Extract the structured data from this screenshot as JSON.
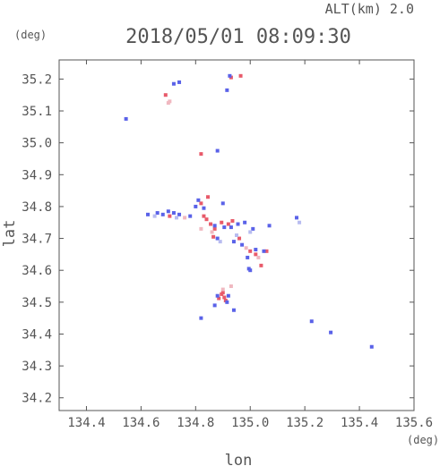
{
  "chart_data": {
    "type": "scatter",
    "title": "2018/05/01 08:09:30",
    "subtitle": "ALT(km) 2.0",
    "xlabel": "lon",
    "ylabel": "lat",
    "x_unit": "(deg)",
    "y_unit": "(deg)",
    "xlim": [
      134.3,
      135.6
    ],
    "ylim": [
      34.16,
      35.26
    ],
    "xticks": [
      "134.4",
      "134.6",
      "134.8",
      "135.0",
      "135.2",
      "135.4",
      "135.6"
    ],
    "yticks": [
      "34.2",
      "34.3",
      "34.4",
      "34.5",
      "34.6",
      "34.7",
      "34.8",
      "34.9",
      "35.0",
      "35.1",
      "35.2"
    ],
    "grid": false,
    "colors": {
      "positive": "#e85a6a",
      "negative": "#5a62e8",
      "pale_positive": "#f0b8c0",
      "pale_negative": "#b8bcf0"
    },
    "series": [
      {
        "values": [
          {
            "x": 134.905,
            "y": 34.515,
            "v": 1
          },
          {
            "x": 134.895,
            "y": 34.525,
            "v": 1
          },
          {
            "x": 134.885,
            "y": 34.512,
            "v": 1
          },
          {
            "x": 134.91,
            "y": 34.505,
            "v": 1
          },
          {
            "x": 134.9,
            "y": 34.53,
            "v": 1
          },
          {
            "x": 134.84,
            "y": 34.76,
            "v": 1
          },
          {
            "x": 134.855,
            "y": 34.745,
            "v": 1
          },
          {
            "x": 134.87,
            "y": 34.73,
            "v": 1
          },
          {
            "x": 134.83,
            "y": 34.77,
            "v": 1
          },
          {
            "x": 134.82,
            "y": 34.81,
            "v": 1
          },
          {
            "x": 134.845,
            "y": 34.83,
            "v": 1
          },
          {
            "x": 134.895,
            "y": 34.75,
            "v": 1
          },
          {
            "x": 134.92,
            "y": 34.745,
            "v": 1
          },
          {
            "x": 134.935,
            "y": 34.755,
            "v": 1
          },
          {
            "x": 135.0,
            "y": 34.66,
            "v": 1
          },
          {
            "x": 135.02,
            "y": 34.65,
            "v": 1
          },
          {
            "x": 135.04,
            "y": 34.615,
            "v": 1
          },
          {
            "x": 134.865,
            "y": 34.705,
            "v": 1
          },
          {
            "x": 134.93,
            "y": 35.205,
            "v": 1
          },
          {
            "x": 134.965,
            "y": 35.21,
            "v": 1
          },
          {
            "x": 134.69,
            "y": 35.15,
            "v": 1
          },
          {
            "x": 134.82,
            "y": 34.965,
            "v": 1
          },
          {
            "x": 134.705,
            "y": 34.77,
            "v": 1
          },
          {
            "x": 135.06,
            "y": 34.66,
            "v": 1
          },
          {
            "x": 134.96,
            "y": 34.7,
            "v": 1
          },
          {
            "x": 134.88,
            "y": 34.52,
            "v": -1
          },
          {
            "x": 134.915,
            "y": 34.5,
            "v": -1
          },
          {
            "x": 134.92,
            "y": 34.52,
            "v": -1
          },
          {
            "x": 134.66,
            "y": 34.78,
            "v": -1
          },
          {
            "x": 134.68,
            "y": 34.775,
            "v": -1
          },
          {
            "x": 134.7,
            "y": 34.785,
            "v": -1
          },
          {
            "x": 134.72,
            "y": 34.78,
            "v": -1
          },
          {
            "x": 134.74,
            "y": 34.775,
            "v": -1
          },
          {
            "x": 134.625,
            "y": 34.775,
            "v": -1
          },
          {
            "x": 134.8,
            "y": 34.8,
            "v": -1
          },
          {
            "x": 134.81,
            "y": 34.82,
            "v": -1
          },
          {
            "x": 134.83,
            "y": 34.795,
            "v": -1
          },
          {
            "x": 134.9,
            "y": 34.81,
            "v": -1
          },
          {
            "x": 134.87,
            "y": 34.74,
            "v": -1
          },
          {
            "x": 134.905,
            "y": 34.735,
            "v": -1
          },
          {
            "x": 134.93,
            "y": 34.735,
            "v": -1
          },
          {
            "x": 134.955,
            "y": 34.745,
            "v": -1
          },
          {
            "x": 134.98,
            "y": 34.75,
            "v": -1
          },
          {
            "x": 134.94,
            "y": 34.69,
            "v": -1
          },
          {
            "x": 134.97,
            "y": 34.68,
            "v": -1
          },
          {
            "x": 135.02,
            "y": 34.665,
            "v": -1
          },
          {
            "x": 135.05,
            "y": 34.66,
            "v": -1
          },
          {
            "x": 135.01,
            "y": 34.73,
            "v": -1
          },
          {
            "x": 135.07,
            "y": 34.74,
            "v": -1
          },
          {
            "x": 134.545,
            "y": 35.075,
            "v": -1
          },
          {
            "x": 134.72,
            "y": 35.185,
            "v": -1
          },
          {
            "x": 134.74,
            "y": 35.19,
            "v": -1
          },
          {
            "x": 134.925,
            "y": 35.21,
            "v": -1
          },
          {
            "x": 134.915,
            "y": 35.165,
            "v": -1
          },
          {
            "x": 134.88,
            "y": 34.975,
            "v": -1
          },
          {
            "x": 135.295,
            "y": 34.405,
            "v": -1
          },
          {
            "x": 135.445,
            "y": 34.36,
            "v": -1
          },
          {
            "x": 135.225,
            "y": 34.44,
            "v": -1
          },
          {
            "x": 134.94,
            "y": 34.475,
            "v": -1
          },
          {
            "x": 134.87,
            "y": 34.49,
            "v": -1
          },
          {
            "x": 134.82,
            "y": 34.45,
            "v": -1
          },
          {
            "x": 135.0,
            "y": 34.6,
            "v": -1
          },
          {
            "x": 134.995,
            "y": 34.605,
            "v": -1
          },
          {
            "x": 134.99,
            "y": 34.64,
            "v": -1
          },
          {
            "x": 135.17,
            "y": 34.765,
            "v": -1
          },
          {
            "x": 134.88,
            "y": 34.7,
            "v": -1
          },
          {
            "x": 134.78,
            "y": 34.77,
            "v": -1
          },
          {
            "x": 134.82,
            "y": 34.73,
            "v": 0.4
          },
          {
            "x": 134.86,
            "y": 34.72,
            "v": 0.4
          },
          {
            "x": 134.9,
            "y": 34.54,
            "v": 0.4
          },
          {
            "x": 134.93,
            "y": 34.55,
            "v": 0.4
          },
          {
            "x": 134.7,
            "y": 35.125,
            "v": 0.4
          },
          {
            "x": 134.705,
            "y": 35.13,
            "v": 0.4
          },
          {
            "x": 135.03,
            "y": 34.64,
            "v": 0.4
          },
          {
            "x": 134.985,
            "y": 34.67,
            "v": 0.4
          },
          {
            "x": 134.76,
            "y": 34.765,
            "v": 0.4
          },
          {
            "x": 134.65,
            "y": 34.77,
            "v": -0.4
          },
          {
            "x": 134.73,
            "y": 34.765,
            "v": -0.4
          },
          {
            "x": 134.95,
            "y": 34.71,
            "v": -0.4
          },
          {
            "x": 135.0,
            "y": 34.72,
            "v": -0.4
          },
          {
            "x": 135.18,
            "y": 34.75,
            "v": -0.4
          },
          {
            "x": 134.89,
            "y": 34.69,
            "v": -0.4
          }
        ]
      }
    ]
  }
}
